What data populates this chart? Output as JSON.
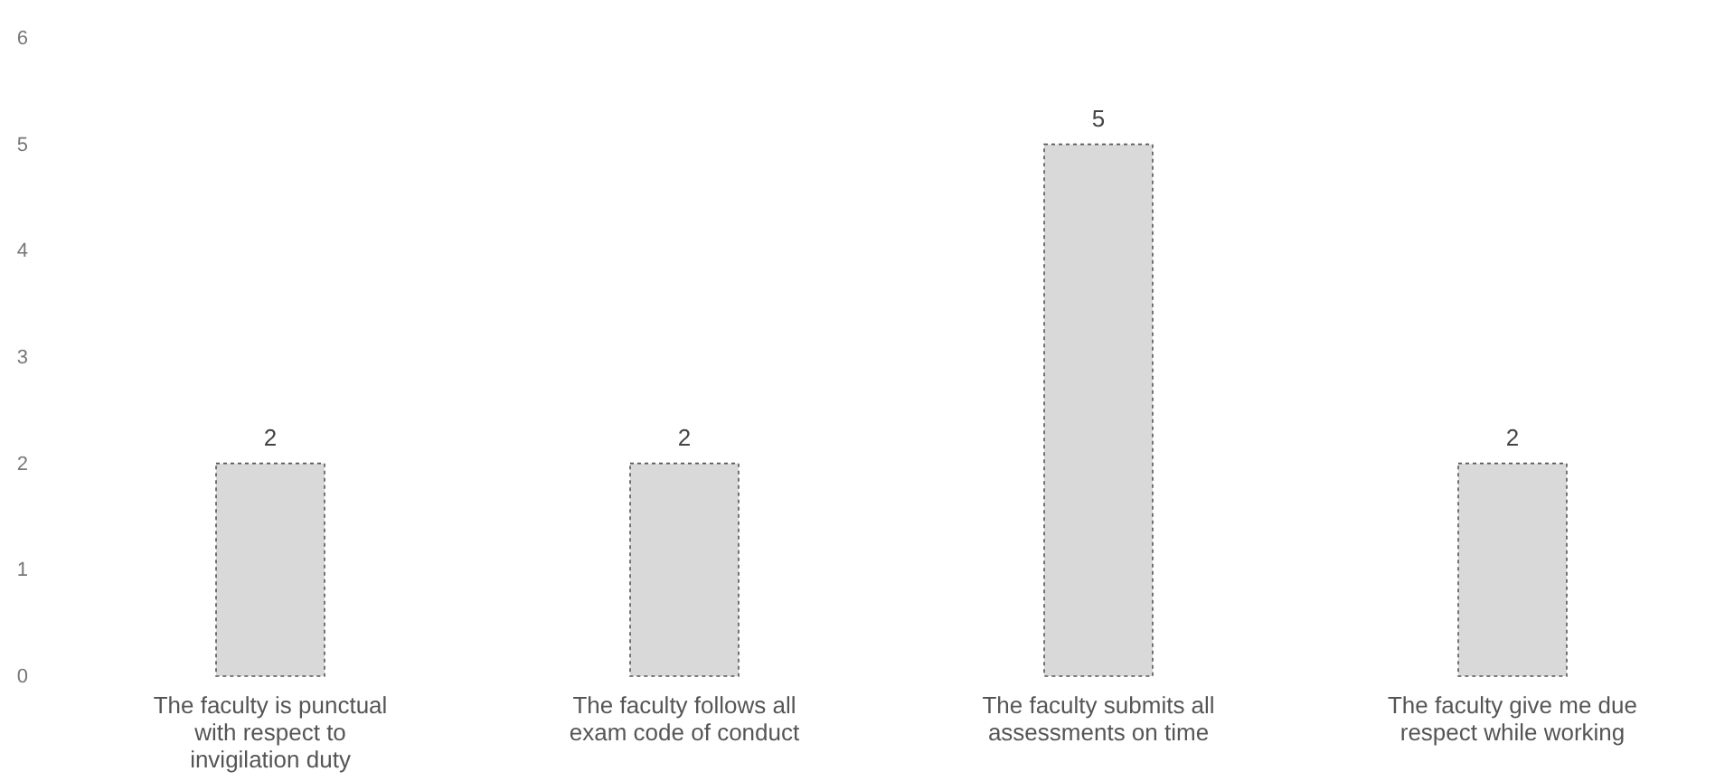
{
  "chart_data": {
    "type": "bar",
    "categories": [
      "The faculty is punctual with respect to invigilation duty",
      "The faculty follows all exam code of conduct",
      "The faculty submits all assessments on time",
      "The faculty give me due respect while working"
    ],
    "values": [
      2,
      2,
      5,
      2
    ],
    "color": "#d9d9d9",
    "ylim": [
      0,
      6
    ],
    "yticks": [
      0,
      1,
      2,
      3,
      4,
      5,
      6
    ],
    "data_labels": true,
    "grid": false
  }
}
